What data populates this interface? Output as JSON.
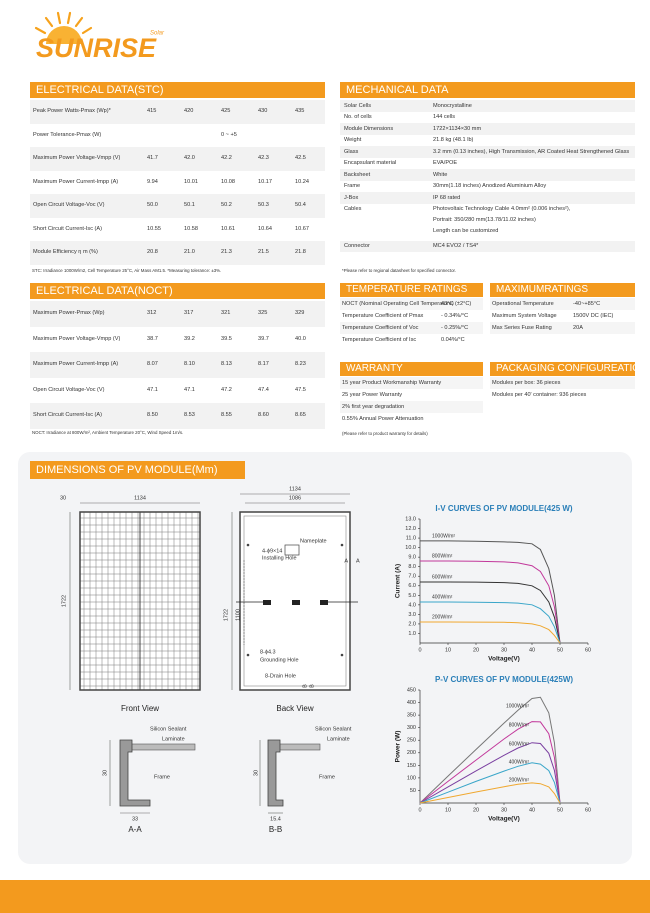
{
  "header": {
    "brand": "SUNRISE",
    "tagline": "Solar"
  },
  "stc": {
    "title": "ELECTRICAL DATA(STC)",
    "rows": [
      {
        "label": "Peak Power Watts-Pmax (Wp)*",
        "values": [
          "415",
          "420",
          "425",
          "430",
          "435"
        ]
      },
      {
        "label": "Power Tolerance-Pmax (W)",
        "values": [
          "0 ~ +5"
        ]
      },
      {
        "label": "Maximum Power Voltage-Vmpp (V)",
        "values": [
          "41.7",
          "42.0",
          "42.2",
          "42.3",
          "42.5"
        ]
      },
      {
        "label": "Maximum Power Current-Impp (A)",
        "values": [
          "9.94",
          "10.01",
          "10.08",
          "10.17",
          "10.24"
        ]
      },
      {
        "label": "Open Circuit Voltage-Voc (V)",
        "values": [
          "50.0",
          "50.1",
          "50.2",
          "50.3",
          "50.4"
        ]
      },
      {
        "label": "Short Circuit Current-Isc (A)",
        "values": [
          "10.55",
          "10.58",
          "10.61",
          "10.64",
          "10.67"
        ]
      },
      {
        "label": "Module Efficiency η m (%)",
        "values": [
          "20.8",
          "21.0",
          "21.3",
          "21.5",
          "21.8"
        ]
      }
    ],
    "note": "STC: Irradiance 1000W/m2, Cell Temperature 25°C, Air Mass AM1.5.  *Measuring tolerance: ±3%."
  },
  "noct": {
    "title": "ELECTRICAL DATA(NOCT)",
    "rows": [
      {
        "label": "Maximum Power-Pmax (Wp)",
        "values": [
          "312",
          "317",
          "321",
          "325",
          "329"
        ]
      },
      {
        "label": "Maximum Power Voltage-Vmpp (V)",
        "values": [
          "38.7",
          "39.2",
          "39.5",
          "39.7",
          "40.0"
        ]
      },
      {
        "label": "Maximum Power Current-Impp (A)",
        "values": [
          "8.07",
          "8.10",
          "8.13",
          "8.17",
          "8.23"
        ]
      },
      {
        "label": "Open Circuit Voltage-Voc (V)",
        "values": [
          "47.1",
          "47.1",
          "47.2",
          "47.4",
          "47.5"
        ]
      },
      {
        "label": "Short Circuit Current-Isc (A)",
        "values": [
          "8.50",
          "8.53",
          "8.55",
          "8.60",
          "8.65"
        ]
      }
    ],
    "note": "NOCT: Irradiance at 800W/m², Ambient Temperature 20°C, Wind Speed 1m/s."
  },
  "mechanical": {
    "title": "MECHANICAL DATA",
    "rows": [
      [
        "Solar Cells",
        "Monocrystalline"
      ],
      [
        "No. of cells",
        "144 cells"
      ],
      [
        "Module Dimensions",
        "1722×1134×30 mm"
      ],
      [
        "Weight",
        "21.8 kg (48.1 lb)"
      ],
      [
        "Glass",
        "3.2 mm (0.13 inches), High Transmission, AR Coated Heat Strengthened Glass"
      ],
      [
        "Encapsulant material",
        "EVA/POE"
      ],
      [
        "Backsheet",
        "White"
      ],
      [
        "Frame",
        "30mm(1.18 inches) Anodized Aluminium Alloy"
      ],
      [
        "J-Box",
        "IP 68 rated"
      ],
      [
        "Cables",
        [
          "Photovoltaic Technology Cable 4.0mm² (0.006 inches²),",
          "Portrait: 350/280 mm(13.78/11.02 inches)",
          "Length can be customized"
        ]
      ],
      [
        "Connector",
        "MC4 EVO2 / TS4*"
      ]
    ],
    "note": "*Please refer to regional datasheet for specified connector."
  },
  "temperature": {
    "title": "TEMPERATURE RATINGS",
    "rows": [
      [
        "NOCT (Nominal Operating Cell Temperature)",
        "43°C (±2°C)"
      ],
      [
        "Temperature Coefficient of Pmax",
        "- 0.34%/°C"
      ],
      [
        "Temperature Coefficient of Voc",
        "- 0.25%/°C"
      ],
      [
        "Temperature Coefficient of Isc",
        "0.04%/°C"
      ]
    ]
  },
  "max_ratings": {
    "title": "MAXIMUMRATINGS",
    "rows": [
      [
        "Operational Temperature",
        "-40~+85°C"
      ],
      [
        "Maximum System Voltage",
        "1500V DC (IEC)"
      ],
      [
        "Max Series Fuse Rating",
        "20A"
      ]
    ]
  },
  "warranty": {
    "title": "WARRANTY",
    "rows": [
      "15 year Product Workmanship Warranty",
      "25 year Power Warranty",
      "2% first year degradation",
      "0.55% Annual Power Attenuation"
    ],
    "note": "(Please refer to product warranty for details)"
  },
  "packaging": {
    "title": "PACKAGING CONFIGUREATION",
    "rows": [
      "Modules per box: 36 pieces",
      "Modules per 40' container: 936 pieces"
    ]
  },
  "dimensions": {
    "title": "DIMENSIONS OF PV MODULE(Mm)",
    "front": {
      "frame": "30",
      "width": "1134",
      "height": "1722",
      "view": "Front View"
    },
    "back": {
      "width": "1134",
      "inner": "1086",
      "nameplate": "Nameplate",
      "hole_spec": "4-ϕ9×14",
      "hole": "Installing Hole",
      "a_left": "A",
      "a_right": "A",
      "height": "1722",
      "mount": "1100",
      "ground_spec": "8-ϕ4.3",
      "ground": "Grounding Hole",
      "drain": "8-Drain Hole",
      "b_left": "B",
      "b_right": "B",
      "view": "Back View"
    },
    "section_a": {
      "sealant": "Silicon Sealant",
      "laminate": "Laminate",
      "frame": "Frame",
      "height": "30",
      "width": "33",
      "name": "A-A"
    },
    "section_b": {
      "sealant": "Silicon Sealant",
      "laminate": "Laminate",
      "frame": "Frame",
      "height": "30",
      "width": "15.4",
      "name": "B-B"
    }
  },
  "chart_data": [
    {
      "type": "line",
      "title": "I-V CURVES OF PV MODULE(425 W)",
      "xlabel": "Voltage(V)",
      "ylabel": "Current (A)",
      "x": [
        0,
        10,
        20,
        30,
        35,
        40,
        43,
        46,
        48,
        50
      ],
      "series": [
        {
          "name": "1000W/m²",
          "color": "#555555",
          "values": [
            10.7,
            10.7,
            10.66,
            10.6,
            10.55,
            10.4,
            9.8,
            7.8,
            5,
            0
          ]
        },
        {
          "name": "800W/m²",
          "color": "#c2389b",
          "values": [
            8.6,
            8.6,
            8.57,
            8.5,
            8.4,
            8.1,
            7.5,
            6,
            3.8,
            0
          ]
        },
        {
          "name": "600W/m²",
          "color": "#333333",
          "values": [
            6.4,
            6.4,
            6.38,
            6.33,
            6.25,
            6,
            5.5,
            4.3,
            2.7,
            0
          ]
        },
        {
          "name": "400W/m²",
          "color": "#3aa6c9",
          "values": [
            4.3,
            4.3,
            4.28,
            4.24,
            4.18,
            4,
            3.6,
            2.8,
            1.7,
            0
          ]
        },
        {
          "name": "200W/m²",
          "color": "#f0a830",
          "values": [
            2.2,
            2.2,
            2.19,
            2.17,
            2.13,
            2,
            1.8,
            1.4,
            0.8,
            0
          ]
        }
      ],
      "xlim": [
        0,
        60
      ],
      "xticks": [
        0,
        10,
        20,
        30,
        40,
        50,
        60
      ],
      "ylim": [
        0,
        13
      ],
      "yticks": [
        {
          "value": 1,
          "label": "1.0"
        },
        {
          "value": 2,
          "label": "2.0"
        },
        {
          "value": 3,
          "label": "3.0"
        },
        {
          "value": 4,
          "label": "4.0"
        },
        {
          "value": 5,
          "label": "5.0"
        },
        {
          "value": 6,
          "label": "6.0"
        },
        {
          "value": 7,
          "label": "7.0"
        },
        {
          "value": 8,
          "label": "8.0"
        },
        {
          "value": 9,
          "label": "9.0"
        },
        {
          "value": 10,
          "label": "10.0"
        },
        {
          "value": 11,
          "label": "11.0"
        },
        {
          "value": 12,
          "label": "12.0"
        },
        {
          "value": 13,
          "label": "13.0"
        }
      ]
    },
    {
      "type": "line",
      "title": "P-V CURVES OF PV MODULE(425W)",
      "xlabel": "Voltage(V)",
      "ylabel": "Power (W)",
      "x": [
        0,
        10,
        20,
        30,
        35,
        40,
        43,
        46,
        48,
        50
      ],
      "series": [
        {
          "name": "1000W/m²",
          "color": "#777777",
          "values": [
            0,
            107,
            213,
            318,
            369,
            416,
            421,
            359,
            240,
            0
          ]
        },
        {
          "name": "800W/m²",
          "color": "#c2389b",
          "values": [
            0,
            86,
            171,
            255,
            294,
            324,
            323,
            276,
            182,
            0
          ]
        },
        {
          "name": "600W/m²",
          "color": "#7a3fa0",
          "values": [
            0,
            64,
            128,
            190,
            219,
            240,
            237,
            198,
            130,
            0
          ]
        },
        {
          "name": "400W/m²",
          "color": "#3aa6c9",
          "values": [
            0,
            43,
            86,
            127,
            146,
            160,
            155,
            129,
            82,
            0
          ]
        },
        {
          "name": "200W/m²",
          "color": "#f0a830",
          "values": [
            0,
            22,
            44,
            65,
            75,
            80,
            77,
            64,
            38,
            0
          ]
        }
      ],
      "xlim": [
        0,
        60
      ],
      "xticks": [
        0,
        10,
        20,
        30,
        40,
        50,
        60
      ],
      "ylim": [
        0,
        450
      ],
      "yticks": [
        50,
        100,
        150,
        200,
        250,
        300,
        350,
        400,
        450
      ]
    }
  ]
}
